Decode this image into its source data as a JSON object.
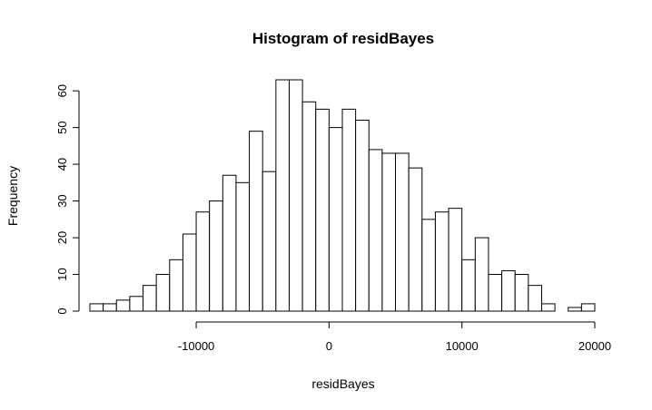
{
  "chart_data": {
    "type": "bar",
    "title": "Histogram of residBayes",
    "xlabel": "residBayes",
    "ylabel": "Frequency",
    "bin_width": 1000,
    "bin_starts": [
      -18000,
      -17000,
      -16000,
      -15000,
      -14000,
      -13000,
      -12000,
      -11000,
      -10000,
      -9000,
      -8000,
      -7000,
      -6000,
      -5000,
      -4000,
      -3000,
      -2000,
      -1000,
      0,
      1000,
      2000,
      3000,
      4000,
      5000,
      6000,
      7000,
      8000,
      9000,
      10000,
      11000,
      12000,
      13000,
      14000,
      15000,
      16000,
      17000,
      18000,
      19000
    ],
    "values": [
      2,
      2,
      3,
      4,
      7,
      10,
      14,
      21,
      27,
      30,
      37,
      35,
      49,
      38,
      63,
      63,
      57,
      55,
      50,
      55,
      52,
      44,
      43,
      43,
      39,
      25,
      27,
      28,
      14,
      20,
      10,
      11,
      10,
      7,
      2,
      0,
      1,
      2
    ],
    "xlim": [
      -18000,
      20000
    ],
    "ylim": [
      0,
      63
    ],
    "x_ticks": [
      -10000,
      0,
      10000,
      20000
    ],
    "x_tick_labels": [
      "-10000",
      "0",
      "10000",
      "20000"
    ],
    "y_ticks": [
      0,
      10,
      20,
      30,
      40,
      50,
      60
    ],
    "y_tick_labels": [
      "0",
      "10",
      "20",
      "30",
      "40",
      "50",
      "60"
    ],
    "grid": false,
    "bar_fill": "#ffffff",
    "bar_stroke": "#000000"
  }
}
